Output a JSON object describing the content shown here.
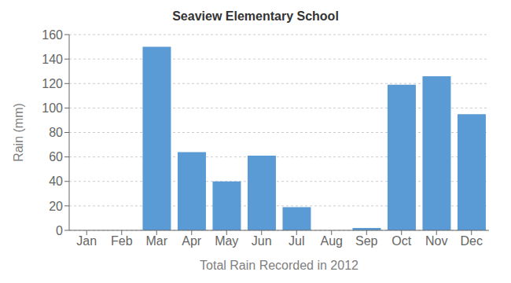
{
  "chart_data": {
    "type": "bar",
    "title": "Seaview Elementary School",
    "xlabel": "Total Rain Recorded in 2012",
    "ylabel": "Rain (mm)",
    "categories": [
      "Jan",
      "Feb",
      "Mar",
      "Apr",
      "May",
      "Jun",
      "Jul",
      "Aug",
      "Sep",
      "Oct",
      "Nov",
      "Dec"
    ],
    "values": [
      0,
      0,
      150,
      64,
      40,
      61,
      19,
      0,
      2,
      119,
      126,
      95
    ],
    "color": "#5b9bd5",
    "ylim": [
      0,
      160
    ],
    "yticks": [
      0,
      20,
      40,
      60,
      80,
      100,
      120,
      140,
      160
    ],
    "grid": true
  }
}
